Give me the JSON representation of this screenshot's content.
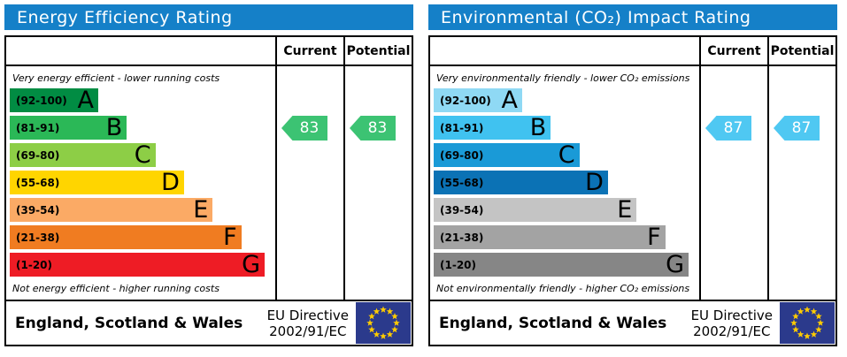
{
  "panels": [
    {
      "title": "Energy Efficiency Rating",
      "header_color": "#1580c8",
      "columns": {
        "current": "Current",
        "potential": "Potential"
      },
      "top_note": "Very energy efficient - lower running costs",
      "bottom_note": "Not energy efficient - higher running costs",
      "bands": [
        {
          "range": "(92-100)",
          "letter": "A",
          "color": "#018c43",
          "width_pct": 34
        },
        {
          "range": "(81-91)",
          "letter": "B",
          "color": "#2bb857",
          "width_pct": 45
        },
        {
          "range": "(69-80)",
          "letter": "C",
          "color": "#8dce46",
          "width_pct": 56
        },
        {
          "range": "(55-68)",
          "letter": "D",
          "color": "#ffd500",
          "width_pct": 67
        },
        {
          "range": "(39-54)",
          "letter": "E",
          "color": "#fbaa65",
          "width_pct": 78
        },
        {
          "range": "(21-38)",
          "letter": "F",
          "color": "#f07c21",
          "width_pct": 89
        },
        {
          "range": "(1-20)",
          "letter": "G",
          "color": "#ee1c25",
          "width_pct": 98
        }
      ],
      "current": {
        "value": "83",
        "arrow_color": "#3cc373"
      },
      "potential": {
        "value": "83",
        "arrow_color": "#3cc373"
      },
      "footer": {
        "region": "England, Scotland & Wales",
        "directive_line1": "EU Directive",
        "directive_line2": "2002/91/EC"
      },
      "flag": {
        "background": "#2b3a8c",
        "star_color": "#ffcc00"
      }
    },
    {
      "title": "Environmental (CO₂) Impact Rating",
      "header_color": "#1580c8",
      "columns": {
        "current": "Current",
        "potential": "Potential"
      },
      "top_note": "Very environmentally friendly - lower CO₂ emissions",
      "bottom_note": "Not environmentally friendly - higher CO₂ emissions",
      "bands": [
        {
          "range": "(92-100)",
          "letter": "A",
          "color": "#8fd9f4",
          "width_pct": 34
        },
        {
          "range": "(81-91)",
          "letter": "B",
          "color": "#40c2f0",
          "width_pct": 45
        },
        {
          "range": "(69-80)",
          "letter": "C",
          "color": "#1a9ad7",
          "width_pct": 56
        },
        {
          "range": "(55-68)",
          "letter": "D",
          "color": "#0b72b5",
          "width_pct": 67
        },
        {
          "range": "(39-54)",
          "letter": "E",
          "color": "#c4c4c4",
          "width_pct": 78
        },
        {
          "range": "(21-38)",
          "letter": "F",
          "color": "#a3a3a3",
          "width_pct": 89
        },
        {
          "range": "(1-20)",
          "letter": "G",
          "color": "#868686",
          "width_pct": 98
        }
      ],
      "current": {
        "value": "87",
        "arrow_color": "#4fc8f2"
      },
      "potential": {
        "value": "87",
        "arrow_color": "#4fc8f2"
      },
      "footer": {
        "region": "England, Scotland & Wales",
        "directive_line1": "EU Directive",
        "directive_line2": "2002/91/EC"
      },
      "flag": {
        "background": "#2b3a8c",
        "star_color": "#ffcc00"
      }
    }
  ],
  "chart_data": [
    {
      "type": "bar",
      "title": "Energy Efficiency Rating",
      "categories": [
        "A (92-100)",
        "B (81-91)",
        "C (69-80)",
        "D (55-68)",
        "E (39-54)",
        "F (21-38)",
        "G (1-20)"
      ],
      "scale_min": 1,
      "scale_max": 100,
      "current": 83,
      "current_band": "B",
      "potential": 83,
      "potential_band": "B",
      "top_annotation": "Very energy efficient - lower running costs",
      "bottom_annotation": "Not energy efficient - higher running costs",
      "footer": "England, Scotland & Wales — EU Directive 2002/91/EC"
    },
    {
      "type": "bar",
      "title": "Environmental (CO₂) Impact Rating",
      "categories": [
        "A (92-100)",
        "B (81-91)",
        "C (69-80)",
        "D (55-68)",
        "E (39-54)",
        "F (21-38)",
        "G (1-20)"
      ],
      "scale_min": 1,
      "scale_max": 100,
      "current": 87,
      "current_band": "B",
      "potential": 87,
      "potential_band": "B",
      "top_annotation": "Very environmentally friendly - lower CO₂ emissions",
      "bottom_annotation": "Not environmentally friendly - higher CO₂ emissions",
      "footer": "England, Scotland & Wales — EU Directive 2002/91/EC"
    }
  ]
}
